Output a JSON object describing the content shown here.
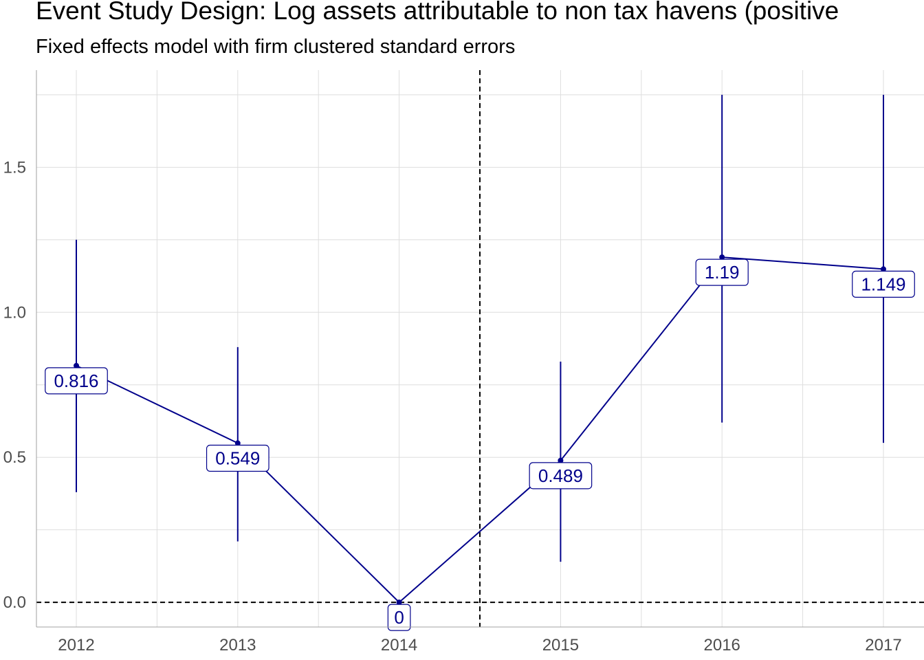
{
  "chart_data": {
    "type": "line",
    "title": "Event Study Design: Log assets attributable to non tax havens (positive",
    "subtitle": "Fixed effects model with firm clustered standard errors",
    "xlabel": "",
    "ylabel": "",
    "categories": [
      "2012",
      "2013",
      "2014",
      "2015",
      "2016",
      "2017"
    ],
    "series": [
      {
        "values": [
          0.816,
          0.549,
          0,
          0.489,
          1.19,
          1.149
        ],
        "lower": [
          0.38,
          0.21,
          0,
          0.14,
          0.62,
          0.55
        ],
        "upper": [
          1.25,
          0.88,
          0,
          0.83,
          1.75,
          1.75
        ],
        "labels": [
          "0.816",
          "0.549",
          "0",
          "0.489",
          "1.19",
          "1.149"
        ]
      }
    ],
    "y_ticks": [
      "0.0",
      "0.5",
      "1.0",
      "1.5"
    ],
    "ylim": [
      -0.085,
      1.835
    ],
    "reference_lines": {
      "horizontal_y": 0,
      "vertical_between": [
        "2014",
        "2015"
      ]
    },
    "grid": true,
    "colors": {
      "series": "#00008b",
      "grid": "#dedede",
      "reference": "#000000"
    }
  }
}
